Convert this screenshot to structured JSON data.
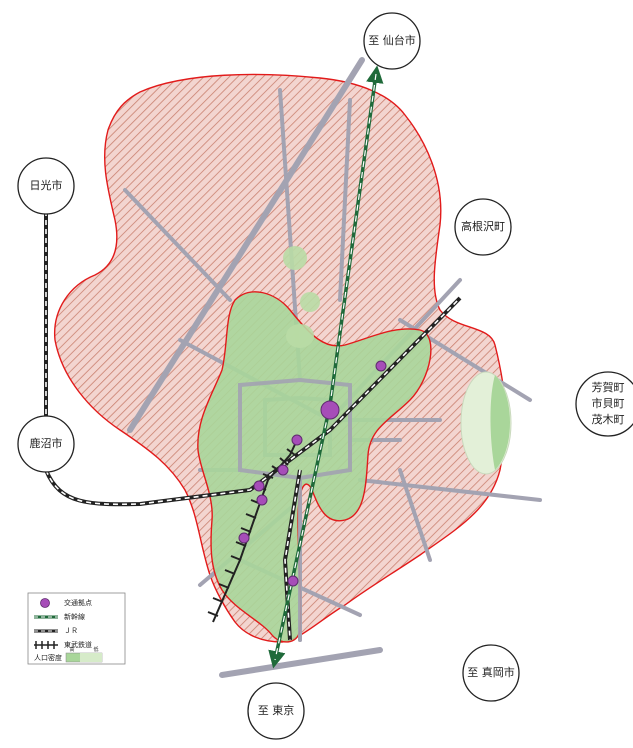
{
  "cities": {
    "sendai": "至 仙台市",
    "nikko": "日光市",
    "takanezawa": "高根沢町",
    "haga": [
      "芳賀町",
      "市貝町",
      "茂木町"
    ],
    "kanuma": "鹿沼市",
    "moka": "至 真岡市",
    "tokyo": "至 東京"
  },
  "legend": {
    "transit_node": "交通拠点",
    "shinkansen": "新幹線",
    "jr": "ＪＲ",
    "tobu": "東武鉄道",
    "density": "人口密度",
    "density_high": "高",
    "density_low": "低"
  },
  "colors": {
    "urban_fill": "#f3d5d0",
    "urban_hatch": "#c9806f",
    "boundary": "#e21b1b",
    "density_fill": "#a9d69a",
    "road": "#a3a3b2",
    "transit_node": "#a64db8",
    "shinkansen": "#1f6a3a"
  }
}
